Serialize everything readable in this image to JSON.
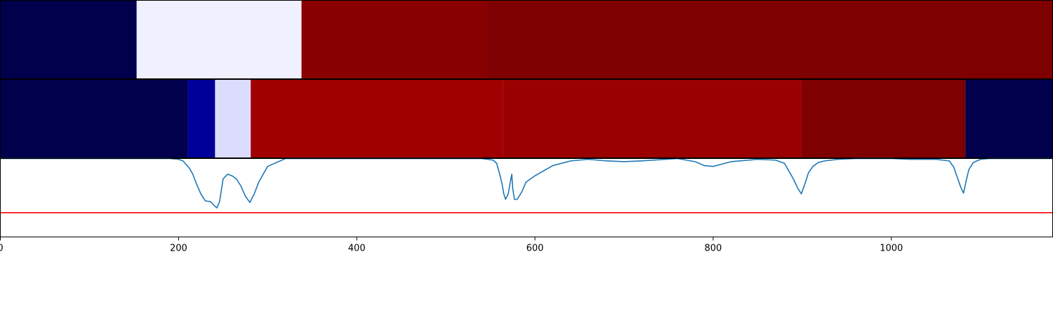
{
  "chart_data": {
    "type": "heatmap",
    "title": "",
    "xlabel": "",
    "ylabel": "",
    "xlim": [
      0,
      1181
    ],
    "grid": false,
    "panels": [
      {
        "type": "heatmap",
        "segments": [
          {
            "start": 0,
            "end": 153,
            "color": "#00004c"
          },
          {
            "start": 153,
            "end": 338,
            "color": "#f0f0ff"
          },
          {
            "start": 338,
            "end": 546,
            "color": "#880000"
          },
          {
            "start": 546,
            "end": 1181,
            "color": "#7f0000"
          }
        ]
      },
      {
        "type": "heatmap",
        "segments": [
          {
            "start": 0,
            "end": 210,
            "color": "#00004c"
          },
          {
            "start": 210,
            "end": 241,
            "color": "#000099"
          },
          {
            "start": 241,
            "end": 281,
            "color": "#dcdcff"
          },
          {
            "start": 281,
            "end": 564,
            "color": "#a00000"
          },
          {
            "start": 564,
            "end": 899,
            "color": "#990000"
          },
          {
            "start": 899,
            "end": 1083,
            "color": "#7f0000"
          },
          {
            "start": 1083,
            "end": 1181,
            "color": "#00004c"
          }
        ]
      },
      {
        "type": "line",
        "ylim": [
          0,
          1
        ],
        "threshold": {
          "value": 0.31,
          "color": "#ff0000"
        },
        "series": [
          {
            "color": "#1f77b4",
            "x": [
              0,
              190,
              200,
              205,
              208,
              212,
              216,
              220,
              225,
              230,
              236,
              240,
              243,
              246,
              250,
              255,
              260,
              265,
              270,
              275,
              280,
              285,
              290,
              300,
              320,
              540,
              553,
              557,
              560,
              563,
              565,
              567,
              570,
              572,
              574,
              575,
              577,
              580,
              585,
              590,
              600,
              620,
              640,
              660,
              680,
              700,
              720,
              760,
              770,
              780,
              790,
              800,
              820,
              850,
              870,
              880,
              885,
              890,
              895,
              899,
              903,
              907,
              912,
              918,
              925,
              940,
              960,
              980,
              1000,
              1020,
              1050,
              1065,
              1070,
              1074,
              1078,
              1081,
              1084,
              1087,
              1092,
              1100,
              1110,
              1181
            ],
            "y": [
              1,
              1,
              0.99,
              0.97,
              0.93,
              0.88,
              0.8,
              0.68,
              0.55,
              0.46,
              0.45,
              0.4,
              0.37,
              0.45,
              0.74,
              0.8,
              0.78,
              0.74,
              0.65,
              0.52,
              0.44,
              0.55,
              0.7,
              0.9,
              1,
              1,
              0.98,
              0.94,
              0.82,
              0.68,
              0.55,
              0.48,
              0.55,
              0.68,
              0.8,
              0.62,
              0.48,
              0.48,
              0.57,
              0.7,
              0.78,
              0.91,
              0.97,
              0.99,
              0.97,
              0.96,
              0.97,
              1,
              0.98,
              0.96,
              0.91,
              0.9,
              0.96,
              0.99,
              0.98,
              0.94,
              0.84,
              0.74,
              0.62,
              0.55,
              0.68,
              0.82,
              0.9,
              0.95,
              0.97,
              0.99,
              1,
              1,
              1,
              0.99,
              0.99,
              0.97,
              0.89,
              0.76,
              0.63,
              0.56,
              0.72,
              0.86,
              0.95,
              0.99,
              1,
              1
            ]
          }
        ]
      }
    ],
    "xticks": [
      0,
      200,
      400,
      600,
      800,
      1000
    ]
  }
}
